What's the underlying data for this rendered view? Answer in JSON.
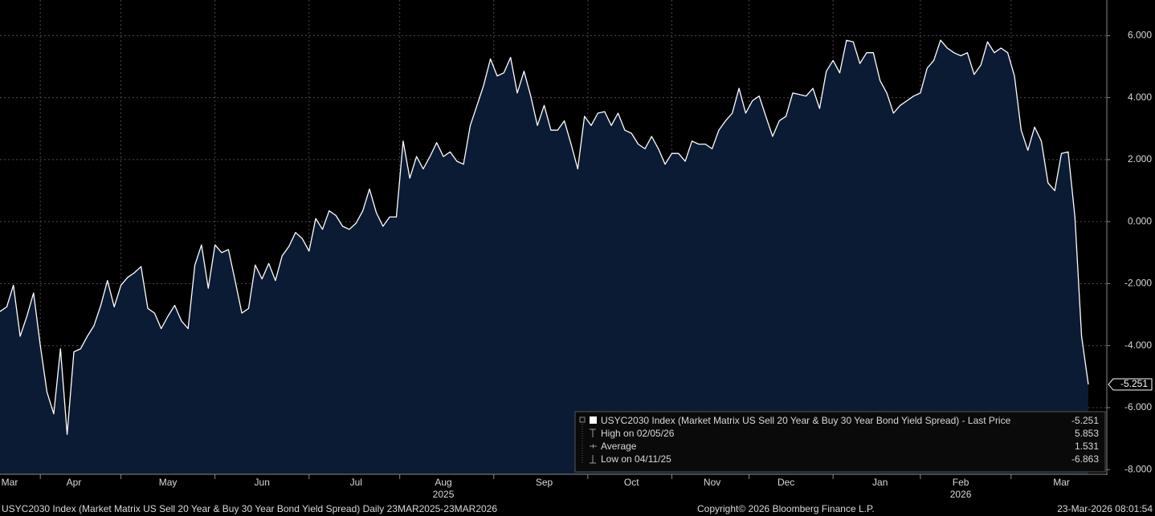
{
  "chart_data": {
    "type": "area",
    "series": [
      {
        "name": "USYC2030 Index (Market Matrix US Sell 20 Year & Buy 30 Year Bond Yield Spread) - Last Price",
        "color": "#ffffff",
        "fill": "#0c1b34",
        "values": [
          -2.9,
          -2.75,
          -2.05,
          -3.7,
          -3.05,
          -2.3,
          -4.0,
          -5.5,
          -6.2,
          -4.1,
          -6.863,
          -4.2,
          -4.1,
          -3.7,
          -3.35,
          -2.7,
          -1.9,
          -2.75,
          -2.05,
          -1.8,
          -1.65,
          -1.45,
          -2.8,
          -2.95,
          -3.45,
          -3.05,
          -2.7,
          -3.2,
          -3.45,
          -1.4,
          -0.75,
          -2.15,
          -0.75,
          -1.0,
          -0.9,
          -1.9,
          -2.95,
          -2.8,
          -1.4,
          -1.85,
          -1.35,
          -1.9,
          -1.1,
          -0.8,
          -0.35,
          -0.55,
          -0.95,
          0.1,
          -0.25,
          0.35,
          0.2,
          -0.15,
          -0.25,
          -0.05,
          0.35,
          1.05,
          0.3,
          -0.15,
          0.15,
          0.15,
          2.6,
          1.4,
          2.1,
          1.7,
          2.1,
          2.55,
          2.1,
          2.25,
          1.95,
          1.85,
          3.1,
          3.75,
          4.4,
          5.25,
          4.7,
          4.8,
          5.3,
          4.15,
          4.85,
          4.05,
          3.1,
          3.75,
          2.95,
          2.95,
          3.25,
          2.5,
          1.7,
          3.4,
          3.1,
          3.5,
          3.55,
          3.1,
          3.5,
          2.95,
          2.85,
          2.5,
          2.35,
          2.75,
          2.35,
          1.85,
          2.2,
          2.2,
          1.95,
          2.6,
          2.5,
          2.5,
          2.35,
          2.95,
          3.25,
          3.5,
          4.3,
          3.5,
          3.9,
          4.05,
          3.4,
          2.75,
          3.25,
          3.4,
          4.15,
          4.1,
          4.05,
          4.3,
          3.65,
          4.85,
          5.2,
          4.8,
          5.85,
          5.8,
          5.1,
          5.45,
          5.45,
          4.55,
          4.15,
          3.5,
          3.75,
          3.9,
          4.05,
          4.15,
          4.95,
          5.2,
          5.853,
          5.6,
          5.45,
          5.35,
          5.45,
          4.75,
          5.05,
          5.8,
          5.45,
          5.6,
          5.45,
          4.7,
          2.95,
          2.3,
          3.05,
          2.6,
          1.25,
          1.0,
          2.2,
          2.25,
          0.15,
          -3.7,
          -5.251
        ]
      }
    ],
    "categories": [
      null,
      "Mar",
      null,
      null,
      null,
      null,
      null,
      null,
      null,
      null,
      null,
      "Apr",
      null,
      null,
      null,
      null,
      null,
      null,
      null,
      null,
      null,
      null,
      null,
      null,
      null,
      "May",
      null,
      null,
      null,
      null,
      null,
      null,
      null,
      null,
      null,
      null,
      null,
      null,
      null,
      "Jun",
      null,
      null,
      null,
      null,
      null,
      null,
      null,
      null,
      null,
      null,
      null,
      null,
      null,
      "Jul",
      null,
      null,
      null,
      null,
      null,
      null,
      null,
      null,
      null,
      null,
      null,
      null,
      "Aug",
      null,
      null,
      null,
      null,
      null,
      null,
      null,
      null,
      null,
      null,
      null,
      null,
      null,
      null,
      "Sep",
      null,
      null,
      null,
      null,
      null,
      null,
      null,
      null,
      null,
      null,
      null,
      null,
      "Oct",
      null,
      null,
      null,
      null,
      null,
      null,
      null,
      null,
      null,
      null,
      null,
      "Nov",
      null,
      null,
      null,
      null,
      null,
      null,
      null,
      null,
      null,
      null,
      "Dec",
      null,
      null,
      null,
      null,
      null,
      null,
      null,
      null,
      null,
      null,
      null,
      null,
      null,
      "Jan",
      null,
      null,
      null,
      null,
      null,
      null,
      null,
      null,
      null,
      null,
      null,
      "Feb",
      null,
      null,
      null,
      null,
      null,
      null,
      null,
      null,
      null,
      null,
      null,
      null,
      null,
      null,
      "Mar",
      null,
      null,
      null,
      null
    ],
    "years": [
      null,
      null,
      null,
      null,
      null,
      null,
      null,
      null,
      null,
      null,
      null,
      null,
      null,
      null,
      null,
      null,
      null,
      null,
      null,
      null,
      null,
      null,
      null,
      null,
      null,
      null,
      null,
      null,
      null,
      null,
      null,
      null,
      null,
      null,
      null,
      null,
      null,
      null,
      null,
      null,
      null,
      null,
      null,
      null,
      null,
      null,
      null,
      null,
      null,
      null,
      null,
      null,
      null,
      null,
      null,
      null,
      null,
      null,
      null,
      null,
      null,
      null,
      null,
      null,
      null,
      null,
      "2025",
      null,
      null,
      null,
      null,
      null,
      null,
      null,
      null,
      null,
      null,
      null,
      null,
      null,
      null,
      null,
      null,
      null,
      null,
      null,
      null,
      null,
      null,
      null,
      null,
      null,
      null,
      null,
      null,
      null,
      null,
      null,
      null,
      null,
      null,
      null,
      null,
      null,
      null,
      null,
      null,
      null,
      null,
      null,
      null,
      null,
      null,
      null,
      null,
      null,
      null,
      null,
      null,
      null,
      null,
      null,
      null,
      null,
      null,
      null,
      null,
      null,
      null,
      null,
      null,
      null,
      null,
      null,
      null,
      null,
      null,
      null,
      null,
      null,
      null,
      null,
      null,
      "2026",
      null,
      null,
      null,
      null,
      null,
      null,
      null,
      null,
      null,
      null,
      null,
      null,
      null,
      null,
      null,
      null,
      null,
      null,
      null
    ],
    "ylim": [
      -8.15,
      7.15
    ],
    "yticks": [
      {
        "value": 6,
        "label": "6.000"
      },
      {
        "value": 4,
        "label": "4.000"
      },
      {
        "value": 2,
        "label": "2.000"
      },
      {
        "value": 0,
        "label": "0.000"
      },
      {
        "value": -2,
        "label": "-2.000"
      },
      {
        "value": -4,
        "label": "-4.000"
      },
      {
        "value": -6,
        "label": "-6.000"
      },
      {
        "value": -8,
        "label": "-8.000"
      }
    ],
    "grid": true,
    "legend": [
      {
        "label": "High on 02/05/26",
        "value": 5.853
      },
      {
        "label": "Average",
        "value": 1.531
      },
      {
        "label": "Low on 04/11/25",
        "value": -6.863
      }
    ],
    "footer": {
      "left": "USYC2030 Index (Market Matrix US Sell 20 Year & Buy 30 Year Bond Yield Spread) Daily 23MAR2025-23MAR2026",
      "center": "Copyright© 2026 Bloomberg Finance L.P.",
      "right": "23-Mar-2026 08:01:54"
    }
  }
}
